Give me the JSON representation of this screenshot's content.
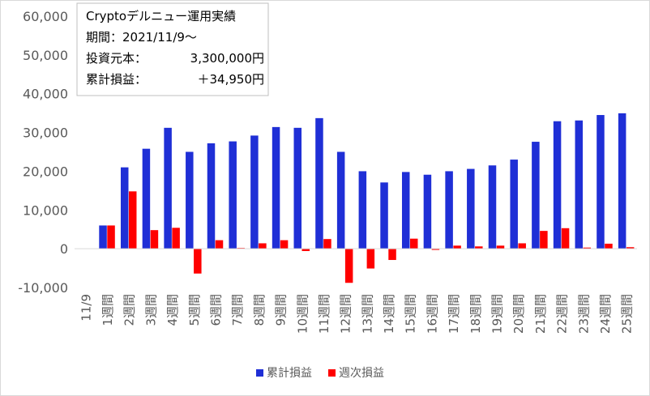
{
  "info_box": {
    "line1": "Cryptoデルニュー運用実績",
    "line2": "期間：2021/11/9～",
    "line3_label": "投資元本：",
    "line3_value": "3,300,000円",
    "line4_label": "累計損益：",
    "line4_value": "＋34,950円"
  },
  "chart_data": {
    "type": "bar",
    "categories": [
      "11/9",
      "1週間",
      "2週間",
      "3週間",
      "4週間",
      "5週間",
      "6週間",
      "7週間",
      "8週間",
      "9週間",
      "10週間",
      "11週間",
      "12週間",
      "13週間",
      "14週間",
      "15週間",
      "16週間",
      "17週間",
      "18週間",
      "19週間",
      "20週間",
      "21週間",
      "22週間",
      "23週間",
      "24週間",
      "25週間"
    ],
    "series": [
      {
        "name": "累計損益",
        "color": "#1f2fd6",
        "values": [
          null,
          6000,
          21000,
          25800,
          31200,
          25000,
          27200,
          27700,
          29200,
          31400,
          31200,
          33700,
          25000,
          20000,
          17100,
          19800,
          19100,
          20000,
          20600,
          21500,
          23000,
          27600,
          32900,
          33100,
          34500,
          34950
        ]
      },
      {
        "name": "週次損益",
        "color": "#ff0000",
        "values": [
          null,
          6000,
          14800,
          4800,
          5400,
          -6400,
          2200,
          200,
          1400,
          2200,
          -600,
          2500,
          -8800,
          -5100,
          -2900,
          2600,
          -300,
          800,
          600,
          800,
          1400,
          4600,
          5300,
          300,
          1300,
          400
        ]
      }
    ],
    "ylim": [
      -10000,
      60000
    ],
    "yticks": [
      "-10,000",
      "0",
      "10,000",
      "20,000",
      "30,000",
      "40,000",
      "50,000",
      "60,000"
    ],
    "legend_position": "bottom",
    "grid": false
  }
}
